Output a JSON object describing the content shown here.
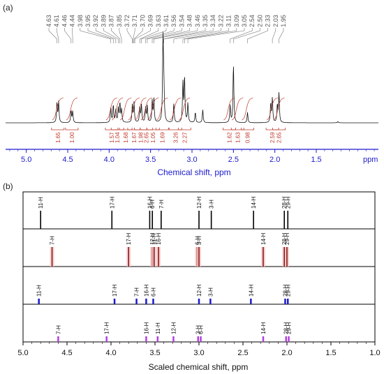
{
  "chart_data": [
    {
      "panel_label": "(a)",
      "type": "line",
      "xlabel": "Chemical shift, ppm",
      "xlim": [
        5.25,
        0.75
      ],
      "x_reversed": true,
      "x_ticks": [
        "5.0",
        "4.5",
        "4.0",
        "3.5",
        "3.0",
        "2.5",
        "2.0",
        "1.5"
      ],
      "x_unit_label": "ppm",
      "colors": {
        "axis": "#1a1acc",
        "spectrum": "#111111",
        "integral": "#c0392b",
        "peak_label": "#555555"
      },
      "peak_labels": [
        "4.63",
        "4.61",
        "4.46",
        "4.44",
        "3.98",
        "3.95",
        "3.92",
        "3.89",
        "3.87",
        "3.85",
        "3.72",
        "3.71",
        "3.70",
        "3.69",
        "3.63",
        "3.61",
        "3.56",
        "3.54",
        "3.48",
        "3.46",
        "3.35",
        "3.34",
        "3.22",
        "3.11",
        "3.09",
        "3.05",
        "2.54",
        "2.50",
        "2.33",
        "2.03",
        "1.95"
      ],
      "peaks": [
        {
          "x": 4.63,
          "h": 0.22
        },
        {
          "x": 4.61,
          "h": 0.24
        },
        {
          "x": 4.46,
          "h": 0.14
        },
        {
          "x": 4.44,
          "h": 0.13
        },
        {
          "x": 3.98,
          "h": 0.18
        },
        {
          "x": 3.95,
          "h": 0.2
        },
        {
          "x": 3.92,
          "h": 0.15
        },
        {
          "x": 3.89,
          "h": 0.16
        },
        {
          "x": 3.87,
          "h": 0.22
        },
        {
          "x": 3.85,
          "h": 0.15
        },
        {
          "x": 3.72,
          "h": 0.2
        },
        {
          "x": 3.7,
          "h": 0.23
        },
        {
          "x": 3.63,
          "h": 0.18
        },
        {
          "x": 3.61,
          "h": 0.2
        },
        {
          "x": 3.56,
          "h": 0.17
        },
        {
          "x": 3.54,
          "h": 0.19
        },
        {
          "x": 3.48,
          "h": 0.25
        },
        {
          "x": 3.46,
          "h": 0.27
        },
        {
          "x": 3.35,
          "h": 1.0
        },
        {
          "x": 3.34,
          "h": 0.38
        },
        {
          "x": 3.22,
          "h": 0.22
        },
        {
          "x": 3.11,
          "h": 0.45
        },
        {
          "x": 3.09,
          "h": 0.52
        },
        {
          "x": 3.05,
          "h": 0.22
        },
        {
          "x": 2.96,
          "h": 0.12
        },
        {
          "x": 2.87,
          "h": 0.15
        },
        {
          "x": 2.54,
          "h": 0.2
        },
        {
          "x": 2.5,
          "h": 0.68
        },
        {
          "x": 2.33,
          "h": 0.12
        },
        {
          "x": 2.05,
          "h": 0.22
        },
        {
          "x": 2.03,
          "h": 0.28
        },
        {
          "x": 1.97,
          "h": 0.2
        },
        {
          "x": 1.95,
          "h": 0.34
        },
        {
          "x": 1.24,
          "h": 0.015
        }
      ],
      "integrals": [
        {
          "value": "1.65",
          "x": 4.62
        },
        {
          "value": "1.00",
          "x": 4.45
        },
        {
          "value": "1.57",
          "x": 3.97
        },
        {
          "value": "1.04",
          "x": 3.9
        },
        {
          "value": "1.68",
          "x": 3.8
        },
        {
          "value": "1.67",
          "x": 3.7
        },
        {
          "value": "1.98",
          "x": 3.62
        },
        {
          "value": "2.65",
          "x": 3.55
        },
        {
          "value": "1.05",
          "x": 3.47
        },
        {
          "value": "1.69",
          "x": 3.36
        },
        {
          "value": "3.26",
          "x": 3.2
        },
        {
          "value": "2.27",
          "x": 3.09
        },
        {
          "value": "1.62",
          "x": 2.55
        },
        {
          "value": "1.63",
          "x": 2.45
        },
        {
          "value": "0.98",
          "x": 2.33
        },
        {
          "value": "2.59",
          "x": 2.03
        },
        {
          "value": "2.65",
          "x": 1.95
        }
      ]
    },
    {
      "panel_label": "(b)",
      "type": "stick",
      "xlabel": "Scaled chemical shift, ppm",
      "xlim": [
        5.0,
        1.0
      ],
      "x_reversed": true,
      "x_ticks": [
        "5.0",
        "4.5",
        "4.0",
        "3.5",
        "3.0",
        "2.5",
        "2.0",
        "1.5",
        "1.0"
      ],
      "series": [
        {
          "color": "#000000",
          "peaks": [
            {
              "label": "11-H",
              "x": 4.8
            },
            {
              "label": "17-H",
              "x": 3.99
            },
            {
              "label": "16-H",
              "x": 3.56
            },
            {
              "label": "6-H",
              "x": 3.53
            },
            {
              "label": "7-H",
              "x": 3.43
            },
            {
              "label": "12-H",
              "x": 3.0
            },
            {
              "label": "3-H",
              "x": 2.86
            },
            {
              "label": "14-H",
              "x": 2.38
            },
            {
              "label": "28-H",
              "x": 2.03
            },
            {
              "label": "29-H",
              "x": 1.99
            }
          ]
        },
        {
          "color": "#8b1a1a",
          "peaks": [
            {
              "label": "7-H",
              "x": 4.67
            },
            {
              "label": "17-H",
              "x": 3.8
            },
            {
              "label": "12-H",
              "x": 3.53
            },
            {
              "label": "11-H",
              "x": 3.51
            },
            {
              "label": "16-H",
              "x": 3.46
            },
            {
              "label": "6-H",
              "x": 3.02
            },
            {
              "label": "3-H",
              "x": 3.0
            },
            {
              "label": "14-H",
              "x": 2.27
            },
            {
              "label": "28-H",
              "x": 2.03
            },
            {
              "label": "29-H",
              "x": 2.0
            }
          ]
        },
        {
          "color": "#1a1acc",
          "peaks": [
            {
              "label": "11-H",
              "x": 4.82
            },
            {
              "label": "17-H",
              "x": 3.96
            },
            {
              "label": "7-H",
              "x": 3.71
            },
            {
              "label": "16-H",
              "x": 3.6
            },
            {
              "label": "6-H",
              "x": 3.52
            },
            {
              "label": "12-H",
              "x": 3.0
            },
            {
              "label": "3-H",
              "x": 2.87
            },
            {
              "label": "14-H",
              "x": 2.41
            },
            {
              "label": "28-H",
              "x": 2.02
            },
            {
              "label": "29-H",
              "x": 1.99
            }
          ]
        },
        {
          "color": "#b040e0",
          "peaks": [
            {
              "label": "7-H",
              "x": 4.6
            },
            {
              "label": "17-H",
              "x": 4.05
            },
            {
              "label": "16-H",
              "x": 3.6
            },
            {
              "label": "11-H",
              "x": 3.47
            },
            {
              "label": "12-H",
              "x": 3.29
            },
            {
              "label": "3-H",
              "x": 3.01
            },
            {
              "label": "6-H",
              "x": 2.98
            },
            {
              "label": "14-H",
              "x": 2.27
            },
            {
              "label": "28-H",
              "x": 2.01
            },
            {
              "label": "29-H",
              "x": 1.98
            }
          ]
        }
      ]
    }
  ]
}
